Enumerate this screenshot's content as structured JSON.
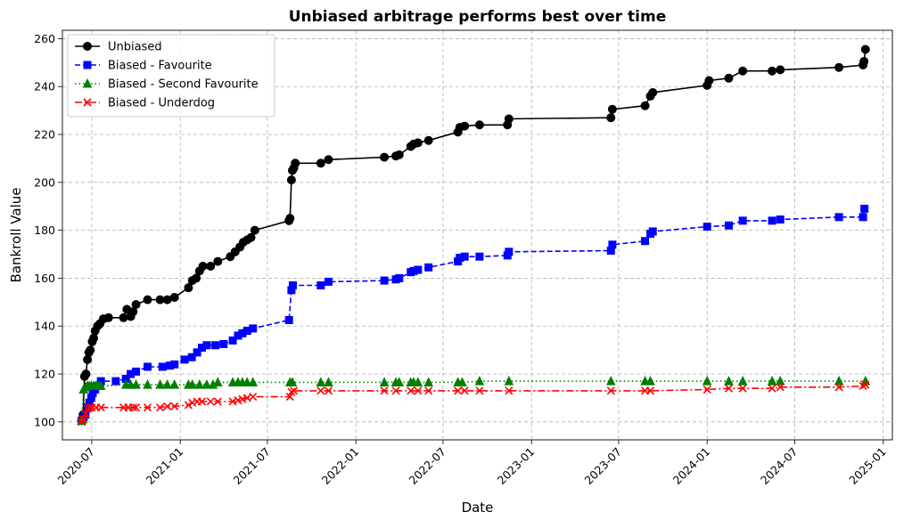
{
  "chart_data": {
    "type": "line",
    "title": "Unbiased arbitrage performs best over time",
    "xlabel": "Date",
    "ylabel": "Bankroll Value",
    "x_type": "date",
    "xlim": [
      "2020-05-01",
      "2025-01-20"
    ],
    "ylim": [
      92.5,
      263.5
    ],
    "x_ticks": [
      "2020-07-01",
      "2021-01-01",
      "2021-07-01",
      "2022-01-01",
      "2022-07-01",
      "2023-01-01",
      "2023-07-01",
      "2024-01-01",
      "2024-07-01",
      "2025-01-01"
    ],
    "x_tick_labels": [
      "2020-07",
      "2021-01",
      "2021-07",
      "2022-01",
      "2022-07",
      "2023-01",
      "2023-07",
      "2024-01",
      "2024-07",
      "2025-01"
    ],
    "y_ticks": [
      100,
      120,
      140,
      160,
      180,
      200,
      220,
      240,
      260
    ],
    "y_tick_labels": [
      "100",
      "120",
      "140",
      "160",
      "180",
      "200",
      "220",
      "240",
      "260"
    ],
    "grid": true,
    "legend_position": "top-left",
    "series": [
      {
        "name": "Unbiased",
        "color": "#000000",
        "linestyle": "solid",
        "marker": "circle",
        "points": [
          [
            "2020-06-10",
            100.5
          ],
          [
            "2020-06-13",
            103
          ],
          [
            "2020-06-16",
            119
          ],
          [
            "2020-06-19",
            120
          ],
          [
            "2020-06-22",
            126
          ],
          [
            "2020-06-25",
            129
          ],
          [
            "2020-06-28",
            130
          ],
          [
            "2020-07-02",
            133.5
          ],
          [
            "2020-07-05",
            135
          ],
          [
            "2020-07-08",
            138
          ],
          [
            "2020-07-13",
            140
          ],
          [
            "2020-07-18",
            141
          ],
          [
            "2020-07-25",
            143
          ],
          [
            "2020-08-05",
            143.5
          ],
          [
            "2020-09-05",
            143.5
          ],
          [
            "2020-09-12",
            147
          ],
          [
            "2020-09-20",
            144
          ],
          [
            "2020-09-25",
            146
          ],
          [
            "2020-10-01",
            149
          ],
          [
            "2020-10-25",
            151
          ],
          [
            "2020-11-20",
            151
          ],
          [
            "2020-12-05",
            151
          ],
          [
            "2020-12-20",
            152
          ],
          [
            "2021-01-18",
            156
          ],
          [
            "2021-01-26",
            159
          ],
          [
            "2021-02-03",
            160
          ],
          [
            "2021-02-10",
            163
          ],
          [
            "2021-02-17",
            165
          ],
          [
            "2021-03-05",
            165
          ],
          [
            "2021-03-20",
            167
          ],
          [
            "2021-04-15",
            169
          ],
          [
            "2021-04-25",
            171
          ],
          [
            "2021-05-05",
            173
          ],
          [
            "2021-05-12",
            175
          ],
          [
            "2021-05-20",
            176
          ],
          [
            "2021-05-28",
            177
          ],
          [
            "2021-06-05",
            180
          ],
          [
            "2021-08-15",
            184
          ],
          [
            "2021-08-17",
            185
          ],
          [
            "2021-08-20",
            201
          ],
          [
            "2021-08-22",
            205
          ],
          [
            "2021-08-25",
            206
          ],
          [
            "2021-08-28",
            208
          ],
          [
            "2021-10-20",
            208
          ],
          [
            "2021-11-05",
            209.5
          ],
          [
            "2022-03-01",
            210.5
          ],
          [
            "2022-03-25",
            211
          ],
          [
            "2022-04-01",
            211.5
          ],
          [
            "2022-04-25",
            215
          ],
          [
            "2022-05-01",
            216
          ],
          [
            "2022-05-10",
            216.5
          ],
          [
            "2022-06-01",
            217.5
          ],
          [
            "2022-08-01",
            221
          ],
          [
            "2022-08-05",
            223
          ],
          [
            "2022-08-15",
            223.5
          ],
          [
            "2022-09-15",
            224
          ],
          [
            "2022-11-12",
            224
          ],
          [
            "2022-11-15",
            226.5
          ],
          [
            "2023-06-15",
            227
          ],
          [
            "2023-06-18",
            230.5
          ],
          [
            "2023-08-25",
            232
          ],
          [
            "2023-09-05",
            236
          ],
          [
            "2023-09-10",
            237.5
          ],
          [
            "2024-01-01",
            240.5
          ],
          [
            "2024-01-05",
            242.5
          ],
          [
            "2024-02-15",
            243.5
          ],
          [
            "2024-03-15",
            246.5
          ],
          [
            "2024-05-15",
            246.5
          ],
          [
            "2024-06-01",
            247
          ],
          [
            "2024-10-01",
            248
          ],
          [
            "2024-11-20",
            249
          ],
          [
            "2024-11-22",
            250.5
          ],
          [
            "2024-11-25",
            255.5
          ]
        ]
      },
      {
        "name": "Biased - Favourite",
        "color": "#0000ff",
        "linestyle": "dashed",
        "marker": "square",
        "points": [
          [
            "2020-06-10",
            100.5
          ],
          [
            "2020-06-14",
            102
          ],
          [
            "2020-06-18",
            103
          ],
          [
            "2020-06-22",
            106
          ],
          [
            "2020-06-26",
            108
          ],
          [
            "2020-06-30",
            110
          ],
          [
            "2020-07-03",
            112
          ],
          [
            "2020-07-08",
            113.5
          ],
          [
            "2020-07-13",
            115
          ],
          [
            "2020-07-20",
            117
          ],
          [
            "2020-08-20",
            117
          ],
          [
            "2020-09-10",
            118
          ],
          [
            "2020-09-20",
            120
          ],
          [
            "2020-10-01",
            121
          ],
          [
            "2020-10-25",
            123
          ],
          [
            "2020-11-25",
            123
          ],
          [
            "2020-12-10",
            123.5
          ],
          [
            "2020-12-20",
            124
          ],
          [
            "2021-01-10",
            126
          ],
          [
            "2021-01-25",
            127
          ],
          [
            "2021-02-05",
            129
          ],
          [
            "2021-02-15",
            131
          ],
          [
            "2021-02-25",
            132
          ],
          [
            "2021-03-15",
            132
          ],
          [
            "2021-04-01",
            132.5
          ],
          [
            "2021-04-20",
            134
          ],
          [
            "2021-05-01",
            136
          ],
          [
            "2021-05-10",
            137
          ],
          [
            "2021-05-20",
            138
          ],
          [
            "2021-06-01",
            139
          ],
          [
            "2021-08-15",
            142.5
          ],
          [
            "2021-08-20",
            155
          ],
          [
            "2021-08-23",
            157
          ],
          [
            "2021-10-20",
            157
          ],
          [
            "2021-11-05",
            158.5
          ],
          [
            "2022-03-01",
            159
          ],
          [
            "2022-03-25",
            159.5
          ],
          [
            "2022-04-01",
            160
          ],
          [
            "2022-04-25",
            162.5
          ],
          [
            "2022-05-01",
            163
          ],
          [
            "2022-05-10",
            163.5
          ],
          [
            "2022-06-01",
            164.5
          ],
          [
            "2022-08-01",
            167
          ],
          [
            "2022-08-05",
            168.5
          ],
          [
            "2022-08-15",
            169
          ],
          [
            "2022-09-15",
            169
          ],
          [
            "2022-11-12",
            169.5
          ],
          [
            "2022-11-15",
            171
          ],
          [
            "2023-06-15",
            171.5
          ],
          [
            "2023-06-18",
            174
          ],
          [
            "2023-08-25",
            175.5
          ],
          [
            "2023-09-05",
            178.5
          ],
          [
            "2023-09-10",
            179.5
          ],
          [
            "2024-01-01",
            181.5
          ],
          [
            "2024-02-15",
            182
          ],
          [
            "2024-03-15",
            184
          ],
          [
            "2024-05-15",
            184
          ],
          [
            "2024-06-01",
            184.5
          ],
          [
            "2024-10-01",
            185.5
          ],
          [
            "2024-11-20",
            185.5
          ],
          [
            "2024-11-23",
            189
          ]
        ]
      },
      {
        "name": "Biased - Second Favourite",
        "color": "#008000",
        "linestyle": "dotted",
        "marker": "triangle",
        "points": [
          [
            "2020-06-10",
            100.5
          ],
          [
            "2020-06-14",
            113.5
          ],
          [
            "2020-06-18",
            114.5
          ],
          [
            "2020-06-22",
            115
          ],
          [
            "2020-06-26",
            115
          ],
          [
            "2020-06-30",
            115
          ],
          [
            "2020-07-05",
            115
          ],
          [
            "2020-07-10",
            115
          ],
          [
            "2020-07-15",
            115
          ],
          [
            "2020-07-20",
            115
          ],
          [
            "2020-09-10",
            115.5
          ],
          [
            "2020-09-20",
            115.5
          ],
          [
            "2020-10-01",
            115.5
          ],
          [
            "2020-10-25",
            115.5
          ],
          [
            "2020-11-20",
            115.5
          ],
          [
            "2020-12-05",
            115.5
          ],
          [
            "2020-12-20",
            115.5
          ],
          [
            "2021-01-18",
            115.5
          ],
          [
            "2021-01-26",
            115.5
          ],
          [
            "2021-02-10",
            115.5
          ],
          [
            "2021-02-25",
            115.5
          ],
          [
            "2021-03-10",
            115.5
          ],
          [
            "2021-03-20",
            116.5
          ],
          [
            "2021-04-20",
            116.5
          ],
          [
            "2021-05-01",
            116.5
          ],
          [
            "2021-05-10",
            116.5
          ],
          [
            "2021-05-20",
            116.5
          ],
          [
            "2021-06-01",
            116.5
          ],
          [
            "2021-08-17",
            116.5
          ],
          [
            "2021-08-22",
            116.5
          ],
          [
            "2021-10-20",
            116.5
          ],
          [
            "2021-11-05",
            116.5
          ],
          [
            "2022-03-01",
            116.5
          ],
          [
            "2022-03-25",
            116.5
          ],
          [
            "2022-04-01",
            116.5
          ],
          [
            "2022-04-25",
            116.5
          ],
          [
            "2022-05-01",
            116.5
          ],
          [
            "2022-05-10",
            116.5
          ],
          [
            "2022-06-01",
            116.5
          ],
          [
            "2022-08-01",
            116.5
          ],
          [
            "2022-08-10",
            116.5
          ],
          [
            "2022-09-15",
            117
          ],
          [
            "2022-11-15",
            117
          ],
          [
            "2023-06-15",
            117
          ],
          [
            "2023-08-25",
            117
          ],
          [
            "2023-09-05",
            117
          ],
          [
            "2024-01-01",
            117
          ],
          [
            "2024-02-15",
            117
          ],
          [
            "2024-03-15",
            117
          ],
          [
            "2024-05-15",
            117
          ],
          [
            "2024-06-01",
            117
          ],
          [
            "2024-10-01",
            117
          ],
          [
            "2024-11-25",
            117
          ]
        ]
      },
      {
        "name": "Biased - Underdog",
        "color": "#ff0000",
        "linestyle": "dashdot",
        "marker": "x",
        "points": [
          [
            "2020-06-10",
            100
          ],
          [
            "2020-06-14",
            101
          ],
          [
            "2020-06-18",
            103.5
          ],
          [
            "2020-06-22",
            105.5
          ],
          [
            "2020-06-26",
            106
          ],
          [
            "2020-07-01",
            106
          ],
          [
            "2020-07-10",
            106
          ],
          [
            "2020-07-20",
            106
          ],
          [
            "2020-09-05",
            106
          ],
          [
            "2020-09-15",
            106
          ],
          [
            "2020-09-25",
            106
          ],
          [
            "2020-10-01",
            106
          ],
          [
            "2020-10-25",
            106
          ],
          [
            "2020-11-20",
            106
          ],
          [
            "2020-12-05",
            106.5
          ],
          [
            "2020-12-20",
            106.5
          ],
          [
            "2021-01-18",
            107
          ],
          [
            "2021-01-26",
            108
          ],
          [
            "2021-02-05",
            108.5
          ],
          [
            "2021-02-15",
            108.5
          ],
          [
            "2021-03-05",
            108.5
          ],
          [
            "2021-03-20",
            108.5
          ],
          [
            "2021-04-20",
            108.5
          ],
          [
            "2021-05-01",
            109
          ],
          [
            "2021-05-10",
            109.5
          ],
          [
            "2021-05-20",
            110
          ],
          [
            "2021-06-01",
            110.5
          ],
          [
            "2021-08-17",
            110.5
          ],
          [
            "2021-08-20",
            112.5
          ],
          [
            "2021-08-25",
            113
          ],
          [
            "2021-10-20",
            113
          ],
          [
            "2021-11-05",
            113
          ],
          [
            "2022-03-01",
            113
          ],
          [
            "2022-03-25",
            113
          ],
          [
            "2022-04-25",
            113
          ],
          [
            "2022-05-10",
            113
          ],
          [
            "2022-06-01",
            113
          ],
          [
            "2022-08-01",
            113
          ],
          [
            "2022-08-15",
            113
          ],
          [
            "2022-09-15",
            113
          ],
          [
            "2022-11-15",
            113
          ],
          [
            "2023-06-15",
            113
          ],
          [
            "2023-08-25",
            113
          ],
          [
            "2023-09-05",
            113
          ],
          [
            "2024-01-01",
            113.5
          ],
          [
            "2024-02-15",
            114
          ],
          [
            "2024-03-15",
            114
          ],
          [
            "2024-05-15",
            114
          ],
          [
            "2024-06-01",
            114.5
          ],
          [
            "2024-10-01",
            114.5
          ],
          [
            "2024-11-20",
            115
          ],
          [
            "2024-11-25",
            115.5
          ]
        ]
      }
    ]
  }
}
